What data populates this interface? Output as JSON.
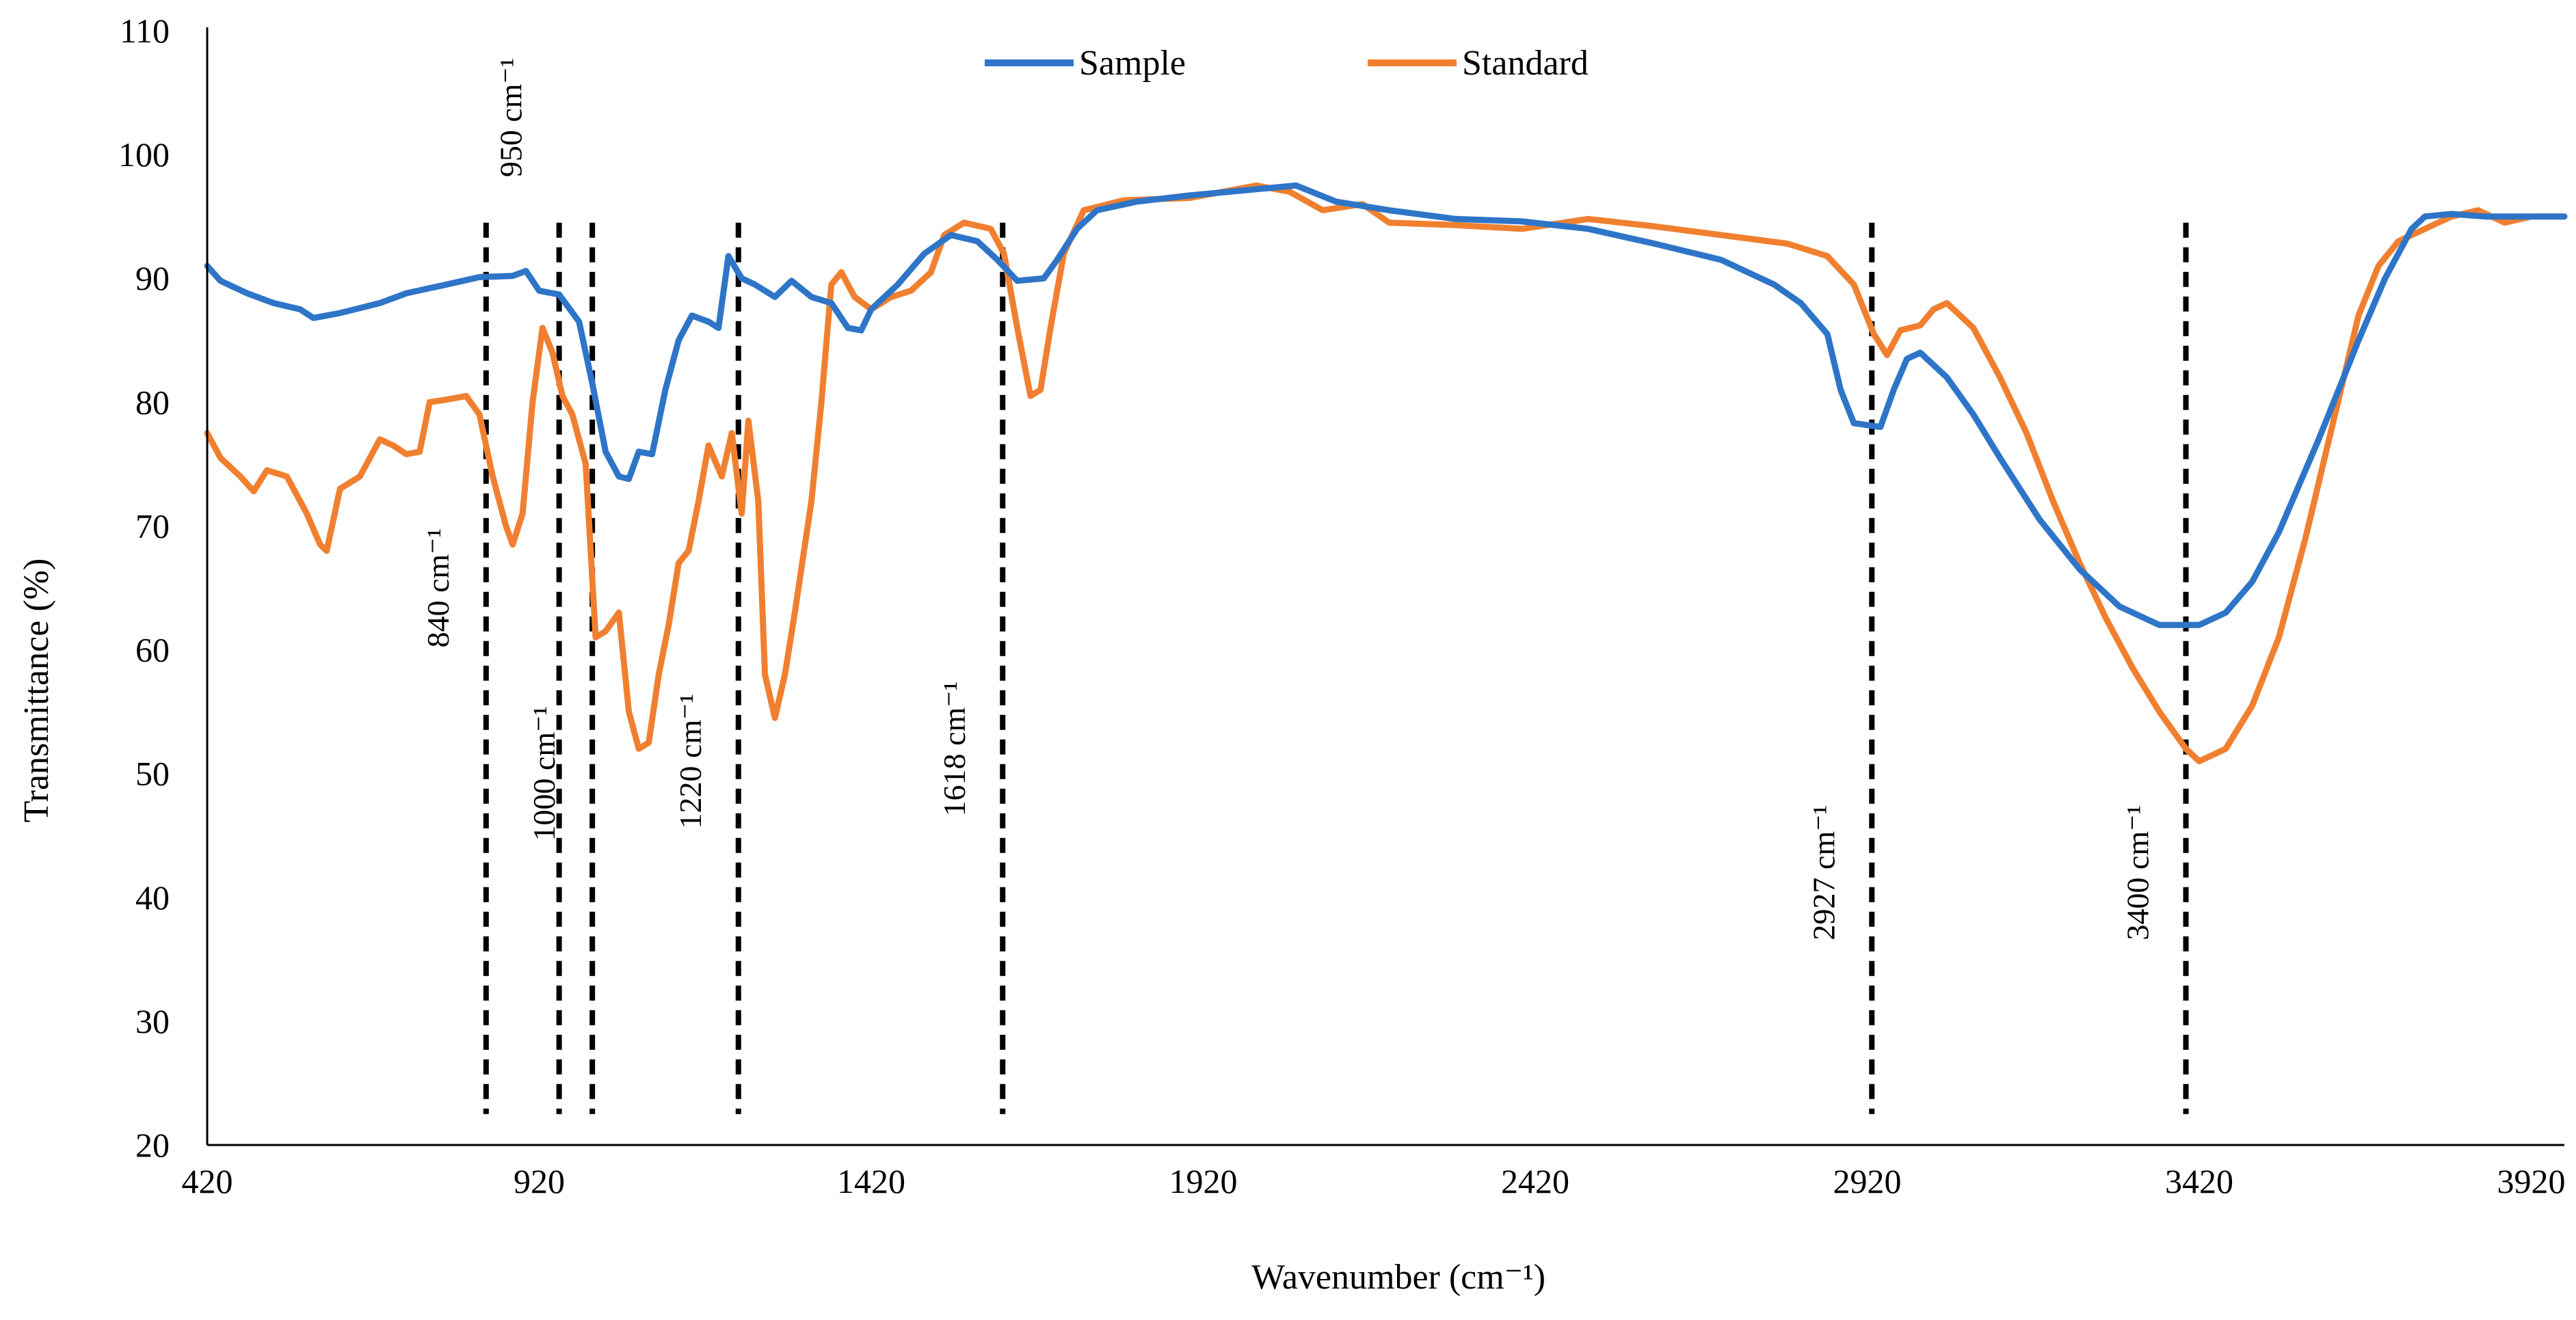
{
  "chart_data": {
    "type": "line",
    "title": "",
    "xlabel": "Wavenumber (cm⁻¹)",
    "ylabel": "Transmittance (%)",
    "xlim": [
      420,
      3970
    ],
    "ylim": [
      20,
      110
    ],
    "x_ticks": [
      420,
      920,
      1420,
      1920,
      2420,
      2920,
      3420,
      3920
    ],
    "y_ticks": [
      20,
      30,
      40,
      50,
      60,
      70,
      80,
      90,
      100,
      110
    ],
    "grid": false,
    "legend": {
      "position": "top-center"
    },
    "series": [
      {
        "name": "Sample",
        "color": "#2E75C8",
        "points": [
          [
            420,
            91
          ],
          [
            440,
            89.8
          ],
          [
            480,
            88.8
          ],
          [
            520,
            88
          ],
          [
            560,
            87.5
          ],
          [
            580,
            86.8
          ],
          [
            620,
            87.2
          ],
          [
            680,
            88
          ],
          [
            720,
            88.8
          ],
          [
            780,
            89.5
          ],
          [
            830,
            90.1
          ],
          [
            880,
            90.2
          ],
          [
            900,
            90.6
          ],
          [
            920,
            89
          ],
          [
            950,
            88.7
          ],
          [
            980,
            86.5
          ],
          [
            1000,
            81.5
          ],
          [
            1020,
            76
          ],
          [
            1040,
            74
          ],
          [
            1055,
            73.8
          ],
          [
            1070,
            76
          ],
          [
            1090,
            75.8
          ],
          [
            1110,
            81
          ],
          [
            1130,
            85
          ],
          [
            1150,
            87
          ],
          [
            1175,
            86.5
          ],
          [
            1190,
            86
          ],
          [
            1205,
            91.8
          ],
          [
            1225,
            90
          ],
          [
            1245,
            89.5
          ],
          [
            1275,
            88.5
          ],
          [
            1300,
            89.8
          ],
          [
            1330,
            88.5
          ],
          [
            1360,
            88
          ],
          [
            1385,
            86
          ],
          [
            1405,
            85.8
          ],
          [
            1420,
            87.5
          ],
          [
            1460,
            89.5
          ],
          [
            1500,
            92
          ],
          [
            1540,
            93.5
          ],
          [
            1580,
            93
          ],
          [
            1610,
            91.5
          ],
          [
            1640,
            89.8
          ],
          [
            1680,
            90
          ],
          [
            1700,
            91.5
          ],
          [
            1730,
            94
          ],
          [
            1760,
            95.5
          ],
          [
            1820,
            96.2
          ],
          [
            1900,
            96.7
          ],
          [
            2000,
            97.2
          ],
          [
            2060,
            97.5
          ],
          [
            2120,
            96.2
          ],
          [
            2200,
            95.5
          ],
          [
            2300,
            94.8
          ],
          [
            2400,
            94.6
          ],
          [
            2500,
            94
          ],
          [
            2600,
            92.8
          ],
          [
            2700,
            91.5
          ],
          [
            2780,
            89.5
          ],
          [
            2820,
            88
          ],
          [
            2860,
            85.5
          ],
          [
            2880,
            81
          ],
          [
            2900,
            78.3
          ],
          [
            2940,
            78
          ],
          [
            2960,
            81
          ],
          [
            2980,
            83.5
          ],
          [
            3000,
            84
          ],
          [
            3040,
            82
          ],
          [
            3080,
            79
          ],
          [
            3120,
            75.5
          ],
          [
            3180,
            70.5
          ],
          [
            3240,
            66.5
          ],
          [
            3300,
            63.5
          ],
          [
            3360,
            62
          ],
          [
            3420,
            62
          ],
          [
            3460,
            63
          ],
          [
            3500,
            65.5
          ],
          [
            3540,
            69.5
          ],
          [
            3600,
            77
          ],
          [
            3660,
            85
          ],
          [
            3700,
            90
          ],
          [
            3740,
            94
          ],
          [
            3760,
            95
          ],
          [
            3800,
            95.2
          ],
          [
            3850,
            95
          ],
          [
            3900,
            95
          ],
          [
            3970,
            95
          ]
        ]
      },
      {
        "name": "Standard",
        "color": "#F08030",
        "points": [
          [
            420,
            77.5
          ],
          [
            440,
            75.5
          ],
          [
            470,
            74
          ],
          [
            490,
            72.8
          ],
          [
            510,
            74.5
          ],
          [
            540,
            74
          ],
          [
            570,
            71
          ],
          [
            590,
            68.5
          ],
          [
            600,
            68
          ],
          [
            620,
            73
          ],
          [
            650,
            74
          ],
          [
            680,
            77
          ],
          [
            700,
            76.5
          ],
          [
            720,
            75.8
          ],
          [
            740,
            76
          ],
          [
            755,
            80
          ],
          [
            780,
            80.2
          ],
          [
            810,
            80.5
          ],
          [
            830,
            79
          ],
          [
            850,
            74
          ],
          [
            870,
            70
          ],
          [
            880,
            68.5
          ],
          [
            895,
            71
          ],
          [
            910,
            80
          ],
          [
            925,
            86
          ],
          [
            940,
            84
          ],
          [
            955,
            80.5
          ],
          [
            970,
            79
          ],
          [
            990,
            75
          ],
          [
            1005,
            61
          ],
          [
            1020,
            61.5
          ],
          [
            1040,
            63
          ],
          [
            1055,
            55
          ],
          [
            1070,
            52
          ],
          [
            1085,
            52.5
          ],
          [
            1100,
            58
          ],
          [
            1115,
            62
          ],
          [
            1130,
            67
          ],
          [
            1145,
            68
          ],
          [
            1160,
            72
          ],
          [
            1175,
            76.5
          ],
          [
            1195,
            74
          ],
          [
            1210,
            77.5
          ],
          [
            1225,
            71
          ],
          [
            1235,
            78.5
          ],
          [
            1250,
            72
          ],
          [
            1260,
            58
          ],
          [
            1275,
            54.5
          ],
          [
            1290,
            58
          ],
          [
            1305,
            63
          ],
          [
            1330,
            72
          ],
          [
            1345,
            80
          ],
          [
            1360,
            89.5
          ],
          [
            1375,
            90.5
          ],
          [
            1395,
            88.5
          ],
          [
            1420,
            87.5
          ],
          [
            1450,
            88.5
          ],
          [
            1480,
            89
          ],
          [
            1510,
            90.5
          ],
          [
            1530,
            93.5
          ],
          [
            1560,
            94.5
          ],
          [
            1600,
            94
          ],
          [
            1620,
            92
          ],
          [
            1640,
            86
          ],
          [
            1660,
            80.5
          ],
          [
            1675,
            81
          ],
          [
            1690,
            86
          ],
          [
            1710,
            92
          ],
          [
            1740,
            95.5
          ],
          [
            1800,
            96.3
          ],
          [
            1900,
            96.5
          ],
          [
            2000,
            97.5
          ],
          [
            2050,
            97
          ],
          [
            2100,
            95.5
          ],
          [
            2160,
            96
          ],
          [
            2200,
            94.5
          ],
          [
            2300,
            94.3
          ],
          [
            2400,
            94
          ],
          [
            2500,
            94.8
          ],
          [
            2600,
            94.2
          ],
          [
            2700,
            93.5
          ],
          [
            2800,
            92.8
          ],
          [
            2860,
            91.8
          ],
          [
            2900,
            89.5
          ],
          [
            2930,
            85.5
          ],
          [
            2950,
            83.8
          ],
          [
            2970,
            85.8
          ],
          [
            3000,
            86.2
          ],
          [
            3020,
            87.5
          ],
          [
            3040,
            88
          ],
          [
            3080,
            86
          ],
          [
            3120,
            82
          ],
          [
            3160,
            77.5
          ],
          [
            3200,
            72
          ],
          [
            3240,
            67
          ],
          [
            3280,
            62.5
          ],
          [
            3320,
            58.5
          ],
          [
            3360,
            55
          ],
          [
            3400,
            52
          ],
          [
            3420,
            51
          ],
          [
            3460,
            52
          ],
          [
            3500,
            55.5
          ],
          [
            3540,
            61
          ],
          [
            3580,
            69
          ],
          [
            3620,
            78
          ],
          [
            3660,
            87
          ],
          [
            3690,
            91
          ],
          [
            3720,
            93
          ],
          [
            3760,
            94
          ],
          [
            3800,
            95
          ],
          [
            3840,
            95.5
          ],
          [
            3880,
            94.5
          ],
          [
            3920,
            95
          ],
          [
            3970,
            95
          ]
        ]
      }
    ],
    "reference_lines": [
      {
        "x": 840,
        "label": "840 cm⁻¹",
        "label_side": "left",
        "label_y": 65
      },
      {
        "x": 950,
        "label": "950 cm⁻¹",
        "label_side": "left",
        "label_y": 103
      },
      {
        "x": 1000,
        "label": "1000 cm⁻¹",
        "label_side": "left",
        "label_y": 50
      },
      {
        "x": 1220,
        "label": "1220 cm⁻¹",
        "label_side": "left",
        "label_y": 51
      },
      {
        "x": 1618,
        "label": "1618 cm⁻¹",
        "label_side": "left",
        "label_y": 52
      },
      {
        "x": 2927,
        "label": "2927 cm⁻¹",
        "label_side": "left",
        "label_y": 42
      },
      {
        "x": 3400,
        "label": "3400 cm⁻¹",
        "label_side": "left",
        "label_y": 42
      }
    ]
  }
}
